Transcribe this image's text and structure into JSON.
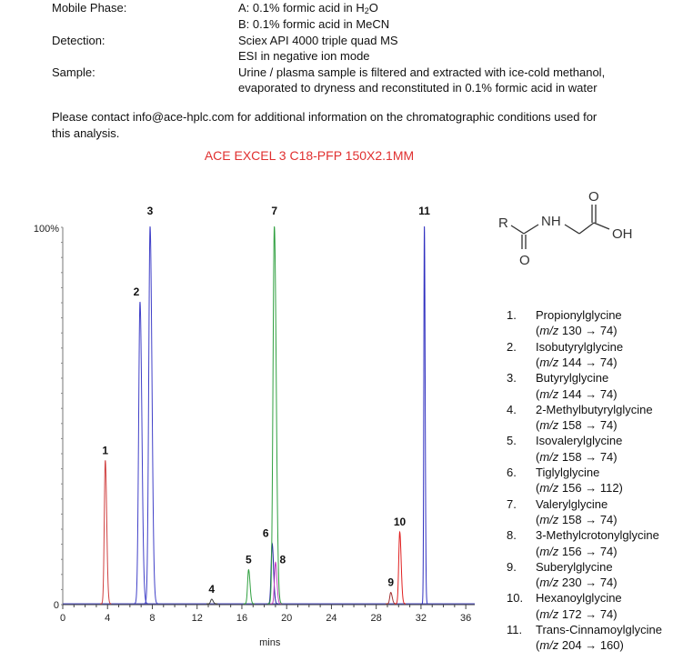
{
  "conditions": {
    "mobile_phase_label": "Mobile Phase:",
    "mobile_phase_a_pre": "A: 0.1% formic acid in H",
    "mobile_phase_a_sub": "2",
    "mobile_phase_a_post": "O",
    "mobile_phase_b": "B: 0.1% formic acid in MeCN",
    "detection_label": "Detection:",
    "detection_1": "Sciex API 4000 triple quad MS",
    "detection_2": "ESI in negative ion mode",
    "sample_label": "Sample:",
    "sample_1": "Urine / plasma sample is filtered and extracted with ice-cold methanol,",
    "sample_2": "evaporated to dryness and reconstituted in 0.1% formic acid in water"
  },
  "contact_1": "Please contact info@ace-hplc.com for additional information on the  chromatographic conditions used for",
  "contact_2": "this analysis.",
  "structure": {
    "r": "R",
    "nh": "NH",
    "o_top": "O",
    "oh": "OH",
    "o_bottom": "O"
  },
  "chart_data": {
    "type": "line",
    "title": "ACE EXCEL 3 C18-PFP 150X2.1MM",
    "xlabel": "mins",
    "ylabel": "",
    "xlim": [
      0,
      36.8
    ],
    "ylim": [
      0,
      100
    ],
    "x_ticks": [
      "0",
      "4",
      "8",
      "12",
      "16",
      "20",
      "24",
      "28",
      "32",
      "36"
    ],
    "y_ticks": [
      "0",
      "100%"
    ],
    "grid": false,
    "peaks": [
      {
        "label": "1",
        "rt": 3.8,
        "height": 38,
        "color": "#d04040"
      },
      {
        "label": "2",
        "rt": 6.9,
        "height": 80,
        "color": "#4040c8"
      },
      {
        "label": "3",
        "rt": 7.8,
        "height": 100,
        "color": "#4040c8"
      },
      {
        "label": "4",
        "rt": 13.3,
        "height": 1.2,
        "color": "#404040"
      },
      {
        "label": "5",
        "rt": 16.6,
        "height": 9,
        "color": "#30a040"
      },
      {
        "label": "6",
        "rt": 18.7,
        "height": 16,
        "color": "#2020a0"
      },
      {
        "label": "7",
        "rt": 18.9,
        "height": 100,
        "color": "#30a040"
      },
      {
        "label": "8",
        "rt": 19.0,
        "height": 11,
        "color": "#c040c0"
      },
      {
        "label": "9",
        "rt": 29.3,
        "height": 3,
        "color": "#a03030"
      },
      {
        "label": "10",
        "rt": 30.1,
        "height": 19,
        "color": "#e02020"
      },
      {
        "label": "11",
        "rt": 32.3,
        "height": 100,
        "color": "#3030c0"
      }
    ]
  },
  "legend": [
    {
      "num": "1.",
      "name": "Propionylglycine",
      "mz": "130 → 74)"
    },
    {
      "num": "2.",
      "name": "Isobutyrylglycine",
      "mz": "144 → 74)"
    },
    {
      "num": "3.",
      "name": "Butyrylglycine",
      "mz": "144 → 74)"
    },
    {
      "num": "4.",
      "name": "2-Methylbutyrylglycine",
      "mz": "158 → 74)"
    },
    {
      "num": "5.",
      "name": "Isovalerylglycine",
      "mz": "158 → 74)"
    },
    {
      "num": "6.",
      "name": "Tiglylglycine",
      "mz": "156 → 112)"
    },
    {
      "num": "7.",
      "name": "Valerylglycine",
      "mz": "158 → 74)"
    },
    {
      "num": "8.",
      "name": "3-Methylcrotonylglycine",
      "mz": "156 → 74)"
    },
    {
      "num": "9.",
      "name": "Suberylglycine",
      "mz": "230 → 74)"
    },
    {
      "num": "10.",
      "name": "Hexanoylglycine",
      "mz": "172 → 74)"
    },
    {
      "num": "11.",
      "name": "Trans-Cinnamoylglycine",
      "mz": "204 → 160)"
    }
  ],
  "mz_prefix": "(",
  "mz_italic": "m/z"
}
